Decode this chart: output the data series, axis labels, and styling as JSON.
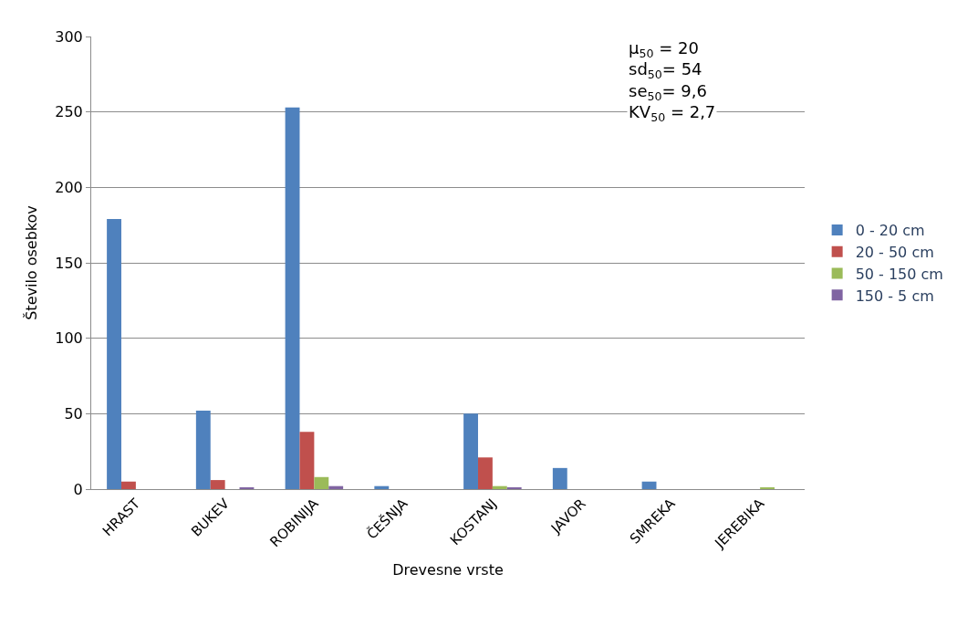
{
  "chart_data": {
    "type": "bar",
    "xlabel": "Drevesne vrste",
    "ylabel": "Število osebkov",
    "categories": [
      "HRAST",
      "BUKEV",
      "ROBINIJA",
      "ČEŠNJA",
      "KOSTANJ",
      "JAVOR",
      "SMREKA",
      "JEREBIKA"
    ],
    "series": [
      {
        "name": "0 - 20 cm",
        "color": "#4f81bd",
        "values": [
          179,
          52,
          253,
          2,
          50,
          14,
          5,
          0
        ]
      },
      {
        "name": "20 - 50 cm",
        "color": "#c0504d",
        "values": [
          5,
          6,
          38,
          0,
          21,
          0,
          0,
          0
        ]
      },
      {
        "name": "50 - 150 cm",
        "color": "#9bbb59",
        "values": [
          0,
          0,
          8,
          0,
          2,
          0,
          0,
          1
        ]
      },
      {
        "name": "150 - 5 cm",
        "color": "#8064a2",
        "values": [
          0,
          1,
          2,
          0,
          1,
          0,
          0,
          0
        ]
      }
    ],
    "ylim": [
      0,
      300
    ],
    "yticks": [
      0,
      50,
      100,
      150,
      200,
      250,
      300
    ],
    "grid": "y",
    "legend": "right",
    "annotations": [
      "μ$_{50}$ = 20",
      "sd$_{50}$= 54",
      "se$_{50}$= 9,6",
      "KV$_{50}$ = 2,7"
    ]
  }
}
